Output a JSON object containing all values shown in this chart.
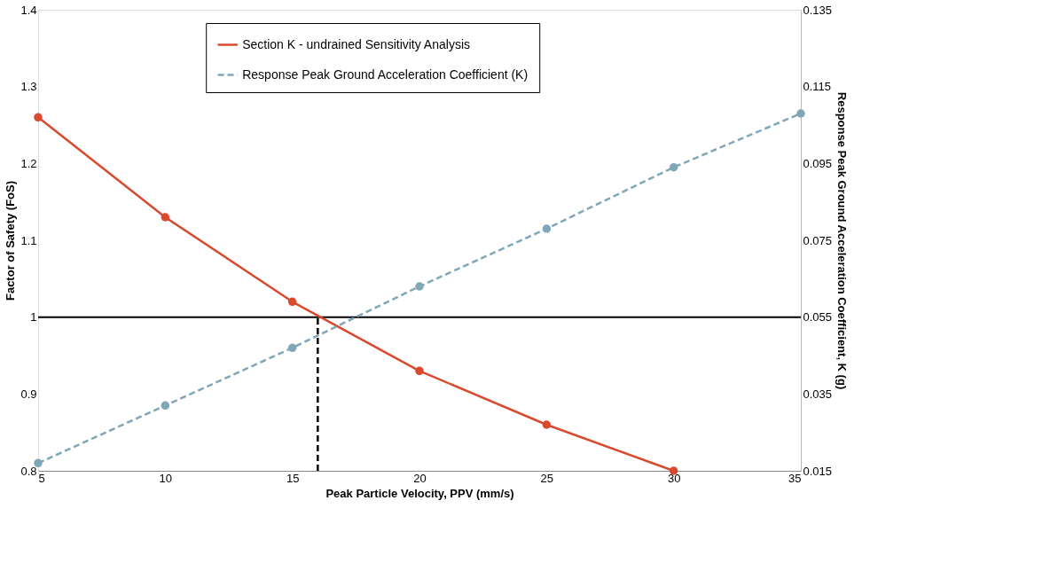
{
  "chart_data": {
    "type": "line",
    "xlabel": "Peak Particle Velocity, PPV (mm/s)",
    "ylabel": "Factor of Safety (FoS)",
    "y2label": "Response Peak Ground Acceleration Coefficient, K (g)",
    "x": [
      5,
      10,
      15,
      20,
      25,
      30,
      35
    ],
    "series": [
      {
        "name": "Section K - undrained Sensitivity Analysis",
        "color": "#d9492e",
        "line_style": "solid",
        "marker": "circle",
        "x": [
          5,
          10,
          15,
          20,
          25,
          30
        ],
        "values": [
          1.26,
          1.13,
          1.02,
          0.93,
          0.86,
          0.8
        ]
      },
      {
        "name": "Response Peak Ground Acceleration Coefficient (K)",
        "color": "#7fa7b8",
        "line_style": "dashed",
        "marker": "circle",
        "axis": "y2",
        "values": [
          0.017,
          0.032,
          0.047,
          0.063,
          0.078,
          0.094,
          0.108
        ]
      },
      {
        "color": "#000000",
        "line_style": "dashed",
        "marker": "none",
        "x": [
          16,
          16
        ],
        "values": [
          0.8,
          1.0
        ]
      }
    ],
    "ref_lines": [
      {
        "axis": "y",
        "value": 1,
        "color": "#000000",
        "line_style": "solid"
      }
    ],
    "xlim": [
      5,
      35
    ],
    "xticks": [
      5,
      10,
      15,
      20,
      25,
      30,
      35
    ],
    "ylim": [
      0.8,
      1.4
    ],
    "yticks": [
      0.8,
      0.9,
      1,
      1.1,
      1.2,
      1.3,
      1.4
    ],
    "y2lim": [
      0.015,
      0.135
    ],
    "y2ticks": [
      0.015,
      0.035,
      0.055,
      0.075,
      0.095,
      0.115,
      0.135
    ],
    "grid": false,
    "legend": "top"
  }
}
